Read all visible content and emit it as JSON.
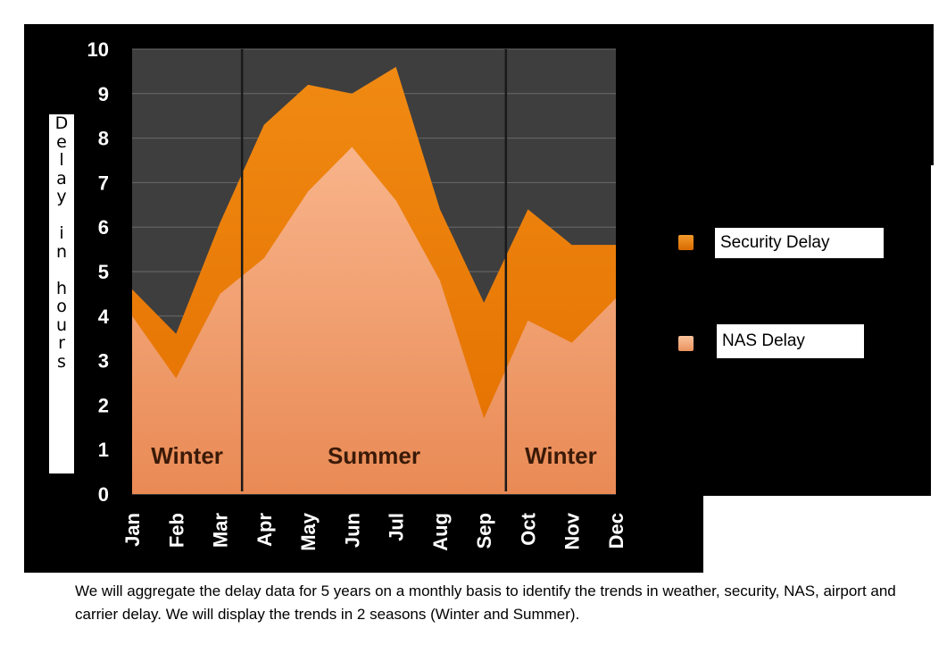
{
  "chart_data": {
    "type": "area",
    "stacked": true,
    "categories": [
      "Jan",
      "Feb",
      "Mar",
      "Apr",
      "May",
      "Jun",
      "Jul",
      "Aug",
      "Sep",
      "Oct",
      "Nov",
      "Dec"
    ],
    "series": [
      {
        "name": "NAS Delay",
        "values": [
          4.0,
          2.6,
          4.5,
          5.3,
          6.8,
          7.8,
          6.6,
          4.8,
          1.7,
          3.9,
          3.4,
          4.4
        ],
        "color": "#f5a673"
      },
      {
        "name": "Security Delay",
        "values": [
          0.6,
          1.0,
          1.6,
          3.0,
          2.4,
          1.2,
          3.0,
          1.6,
          2.6,
          2.5,
          2.2,
          1.2
        ],
        "color": "#ee7c08"
      }
    ],
    "ylabel": "Delay in hours",
    "ylim": [
      0,
      10
    ],
    "yticks": [
      0,
      1,
      2,
      3,
      4,
      5,
      6,
      7,
      8,
      9,
      10
    ],
    "grid": true,
    "legend_position": "right",
    "season_labels": [
      "Winter",
      "Summer",
      "Winter"
    ],
    "season_dividers_after_month": [
      3,
      9
    ],
    "plot_background": "#3e3e3e",
    "frame_background": "#000000"
  },
  "legend": {
    "items": [
      {
        "label": "Security Delay",
        "color": "#ee7c08"
      },
      {
        "label": "NAS Delay",
        "color": "#f5a673"
      }
    ]
  },
  "caption": "We will aggregate the delay data for 5 years on a monthly basis to identify the trends in weather, security, NAS, airport and carrier delay. We will display the trends in 2 seasons (Winter and Summer)."
}
